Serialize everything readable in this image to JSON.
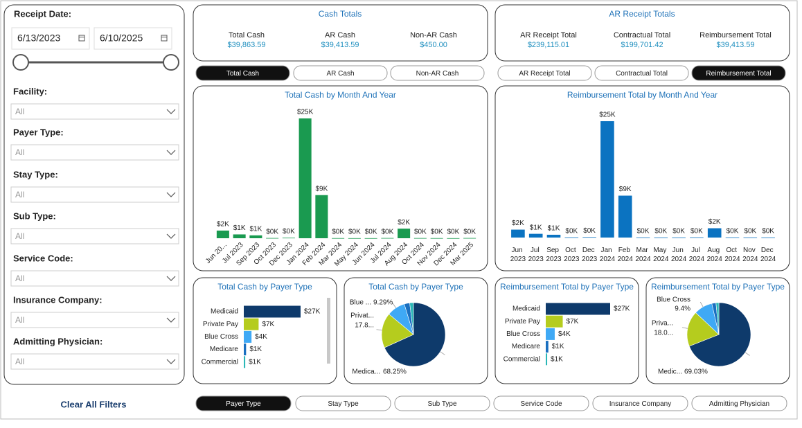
{
  "filters": {
    "receipt_date_label": "Receipt Date:",
    "start_date": "6/13/2023",
    "end_date": "6/10/2025",
    "fields": [
      {
        "label": "Facility:",
        "value": "All"
      },
      {
        "label": "Payer Type:",
        "value": "All"
      },
      {
        "label": "Stay Type:",
        "value": "All"
      },
      {
        "label": "Sub Type:",
        "value": "All"
      },
      {
        "label": "Service Code:",
        "value": "All"
      },
      {
        "label": "Insurance Company:",
        "value": "All"
      },
      {
        "label": "Admitting Physician:",
        "value": "All"
      }
    ],
    "clear": "Clear All Filters"
  },
  "cash_totals": {
    "title": "Cash Totals",
    "items": [
      {
        "label": "Total Cash",
        "value": "$39,863.59"
      },
      {
        "label": "AR Cash",
        "value": "$39,413.59"
      },
      {
        "label": "Non-AR Cash",
        "value": "$450.00"
      }
    ]
  },
  "ar_totals": {
    "title": "AR Receipt Totals",
    "items": [
      {
        "label": "AR Receipt Total",
        "value": "$239,115.01"
      },
      {
        "label": "Contractual Total",
        "value": "$199,701.42"
      },
      {
        "label": "Reimbursement Total",
        "value": "$39,413.59"
      }
    ]
  },
  "cash_tabs": {
    "items": [
      "Total Cash",
      "AR Cash",
      "Non-AR Cash"
    ],
    "selected": 0
  },
  "ar_tabs": {
    "items": [
      "AR Receipt Total",
      "Contractual Total",
      "Reimbursement Total"
    ],
    "selected": 2
  },
  "bottom_tabs": {
    "items": [
      "Payer Type",
      "Stay Type",
      "Sub Type",
      "Service Code",
      "Insurance Company",
      "Admitting Physician"
    ],
    "selected": 0
  },
  "chart_data": [
    {
      "type": "bar",
      "title": "Total Cash by Month And Year",
      "color": "#1a9a50",
      "categories": [
        "Jun 20...",
        "Jul 2023",
        "Sep 2023",
        "Oct 2023",
        "Dec 2023",
        "Jan 2024",
        "Feb 2024",
        "Mar 2024",
        "May 2024",
        "Jun 2024",
        "Jul 2024",
        "Aug 2024",
        "Oct 2024",
        "Nov 2024",
        "Dec 2024",
        "Mar 2025"
      ],
      "values": [
        1.6,
        0.8,
        0.6,
        0.05,
        0.1,
        25,
        9,
        0.03,
        0.02,
        0.02,
        0.05,
        2,
        0.04,
        0.03,
        0.02,
        0.05
      ],
      "value_labels": [
        "$2K",
        "$1K",
        "$1K",
        "$0K",
        "$0K",
        "$25K",
        "$9K",
        "$0K",
        "$0K",
        "$0K",
        "$0K",
        "$2K",
        "$0K",
        "$0K",
        "$0K",
        "$0K"
      ]
    },
    {
      "type": "bar",
      "title": "Reimbursement Total by Month And Year",
      "color": "#0b73c1",
      "categories": [
        "Jun 2023",
        "Jul 2023",
        "Sep 2023",
        "Oct 2023",
        "Dec 2023",
        "Jan 2024",
        "Feb 2024",
        "Mar 2024",
        "May 2024",
        "Jun 2024",
        "Jul 2024",
        "Aug 2024",
        "Oct 2024",
        "Nov 2024",
        "Dec 2024"
      ],
      "values": [
        1.7,
        0.8,
        0.6,
        0.05,
        0.1,
        25,
        9,
        0.03,
        0.02,
        0.02,
        0.05,
        2,
        0.04,
        0.03,
        0.02
      ],
      "value_labels": [
        "$2K",
        "$1K",
        "$1K",
        "$0K",
        "$0K",
        "$25K",
        "$9K",
        "$0K",
        "$0K",
        "$0K",
        "$0K",
        "$2K",
        "$0K",
        "$0K",
        "$0K"
      ]
    },
    {
      "type": "barh",
      "title": "Total Cash by Payer Type",
      "categories": [
        "Medicaid",
        "Private Pay",
        "Blue Cross",
        "Medicare",
        "Commercial"
      ],
      "values": [
        27.2,
        7.1,
        3.7,
        1.1,
        0.7
      ],
      "value_labels": [
        "$27K",
        "$7K",
        "$4K",
        "$1K",
        "$1K"
      ],
      "colors": [
        "#0e3a6b",
        "#b5cc1e",
        "#3fa9f5",
        "#1a6fc0",
        "#2ab7b7"
      ]
    },
    {
      "type": "pie",
      "title": "Total Cash by Payer Type",
      "categories": [
        "Medica...",
        "Privat...",
        "Blue ...",
        null,
        null
      ],
      "values": [
        68.25,
        17.8,
        9.29,
        2.76,
        1.9
      ],
      "value_labels": [
        "68.25%",
        "17.8...",
        "9.29%",
        null,
        null
      ],
      "colors": [
        "#0e3a6b",
        "#b5cc1e",
        "#3fa9f5",
        "#1a6fc0",
        "#2ab7b7"
      ]
    },
    {
      "type": "barh",
      "title": "Reimbursement Total by Payer Type",
      "categories": [
        "Medicaid",
        "Private Pay",
        "Blue Cross",
        "Medicare",
        "Commercial"
      ],
      "values": [
        27.3,
        7.2,
        3.8,
        1.1,
        0.6
      ],
      "value_labels": [
        "$27K",
        "$7K",
        "$4K",
        "$1K",
        "$1K"
      ],
      "colors": [
        "#0e3a6b",
        "#b5cc1e",
        "#3fa9f5",
        "#1a6fc0",
        "#2ab7b7"
      ]
    },
    {
      "type": "pie",
      "title": "Reimbursement Total by Payer Type",
      "categories": [
        "Medic...",
        "Priva...",
        "Blue Cross",
        null,
        null
      ],
      "values": [
        69.03,
        18.0,
        9.4,
        2.1,
        1.47
      ],
      "value_labels": [
        "69.03%",
        "18.0...",
        "9.4%",
        null,
        null
      ],
      "colors": [
        "#0e3a6b",
        "#b5cc1e",
        "#3fa9f5",
        "#1a6fc0",
        "#2ab7b7"
      ]
    }
  ]
}
